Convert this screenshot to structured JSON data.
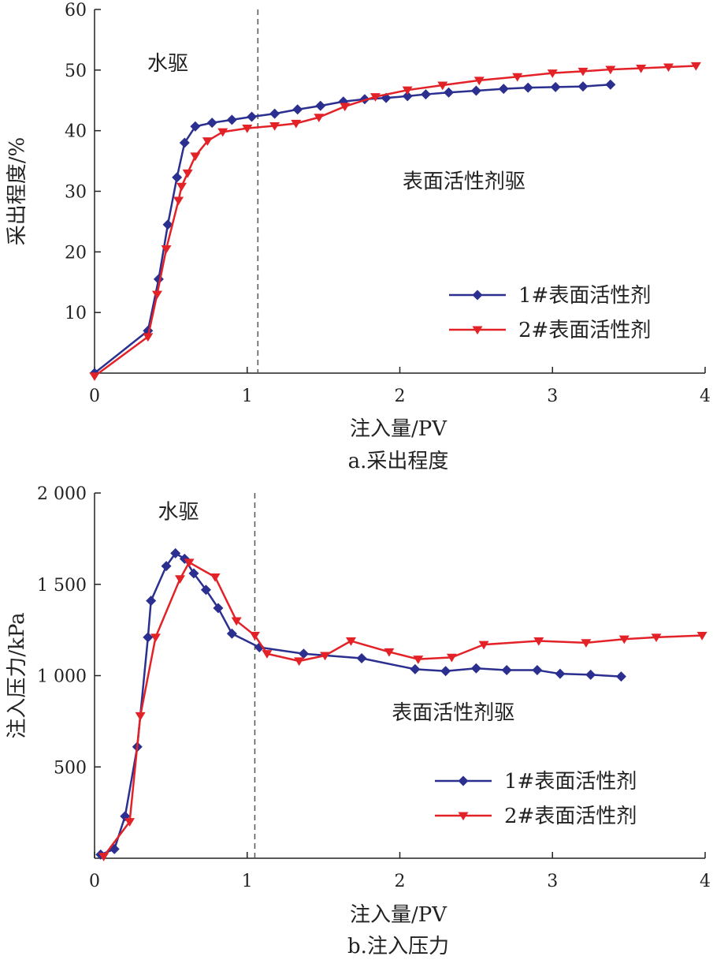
{
  "colors": {
    "series1": "#2b2f8f",
    "series2": "#e32228",
    "axis": "#222222",
    "divider": "#555555"
  },
  "chart_data": [
    {
      "type": "line",
      "caption": "a.采出程度",
      "xlabel": "注入量/PV",
      "ylabel": "采出程度/%",
      "xlim": [
        0,
        4
      ],
      "ylim": [
        0,
        60
      ],
      "xticks": [
        0,
        1,
        2,
        3,
        4
      ],
      "yticks": [
        10,
        20,
        30,
        40,
        50,
        60
      ],
      "divider_x": 1.07,
      "annotations": [
        {
          "text": "水驱",
          "x": 0.48,
          "y": 50
        },
        {
          "text": "表面活性剂驱",
          "x": 2.42,
          "y": 30.5
        }
      ],
      "legend_position": "bottom-right",
      "series": [
        {
          "name": "1#表面活性剂",
          "marker": "diamond",
          "x": [
            0,
            0.35,
            0.42,
            0.48,
            0.54,
            0.59,
            0.66,
            0.77,
            0.9,
            1.03,
            1.18,
            1.33,
            1.48,
            1.63,
            1.77,
            1.91,
            2.05,
            2.17,
            2.32,
            2.5,
            2.68,
            2.84,
            3.02,
            3.2,
            3.38
          ],
          "y": [
            0,
            7,
            15.5,
            24.5,
            32.3,
            38,
            40.7,
            41.3,
            41.8,
            42.3,
            42.8,
            43.5,
            44.1,
            44.8,
            45.2,
            45.4,
            45.7,
            46,
            46.3,
            46.6,
            46.9,
            47.1,
            47.2,
            47.3,
            47.6
          ]
        },
        {
          "name": "2#表面活性剂",
          "marker": "triangle-down",
          "x": [
            0,
            0.35,
            0.41,
            0.47,
            0.55,
            0.57,
            0.61,
            0.66,
            0.74,
            0.84,
            1.0,
            1.18,
            1.32,
            1.47,
            1.64,
            1.84,
            2.05,
            2.28,
            2.52,
            2.77,
            3.0,
            3.2,
            3.38,
            3.58,
            3.76,
            3.94
          ],
          "y": [
            -0.5,
            6,
            13,
            20.5,
            28.5,
            30.8,
            33,
            35.8,
            38.3,
            39.8,
            40.4,
            40.8,
            41.2,
            42.2,
            44,
            45.6,
            46.7,
            47.5,
            48.3,
            48.9,
            49.5,
            49.8,
            50.1,
            50.3,
            50.5,
            50.7
          ]
        }
      ]
    },
    {
      "type": "line",
      "caption": "b.注入压力",
      "xlabel": "注入量/PV",
      "ylabel": "注入压力/kPa",
      "xlim": [
        0,
        4
      ],
      "ylim": [
        0,
        2000
      ],
      "xticks": [
        0,
        1,
        2,
        3,
        4
      ],
      "xtick_labels": [
        "0",
        "1",
        "2",
        "3",
        "4"
      ],
      "yticks": [
        500,
        1000,
        1500,
        2000
      ],
      "ytick_labels": [
        "500",
        "1 000",
        "1 500",
        "2 000"
      ],
      "divider_x": 1.05,
      "annotations": [
        {
          "text": "水驱",
          "x": 0.55,
          "y": 1860
        },
        {
          "text": "表面活性剂驱",
          "x": 2.35,
          "y": 760
        }
      ],
      "legend_position": "bottom-right",
      "series": [
        {
          "name": "1#表面活性剂",
          "marker": "diamond",
          "x": [
            0.04,
            0.13,
            0.2,
            0.28,
            0.35,
            0.37,
            0.47,
            0.53,
            0.59,
            0.65,
            0.73,
            0.81,
            0.9,
            1.08,
            1.37,
            1.75,
            2.1,
            2.3,
            2.5,
            2.7,
            2.9,
            3.05,
            3.25,
            3.45
          ],
          "y": [
            20,
            50,
            230,
            610,
            1210,
            1410,
            1600,
            1670,
            1640,
            1560,
            1470,
            1370,
            1230,
            1155,
            1120,
            1095,
            1035,
            1025,
            1040,
            1030,
            1030,
            1010,
            1005,
            995
          ]
        },
        {
          "name": "2#表面活性剂",
          "marker": "triangle-down",
          "x": [
            0.06,
            0.23,
            0.3,
            0.4,
            0.56,
            0.62,
            0.79,
            0.93,
            1.05,
            1.13,
            1.34,
            1.51,
            1.68,
            1.93,
            2.12,
            2.34,
            2.55,
            2.91,
            3.22,
            3.47,
            3.68,
            3.98
          ],
          "y": [
            10,
            200,
            780,
            1210,
            1530,
            1620,
            1540,
            1300,
            1220,
            1120,
            1080,
            1110,
            1190,
            1130,
            1090,
            1100,
            1170,
            1190,
            1180,
            1200,
            1210,
            1220
          ]
        }
      ]
    }
  ]
}
